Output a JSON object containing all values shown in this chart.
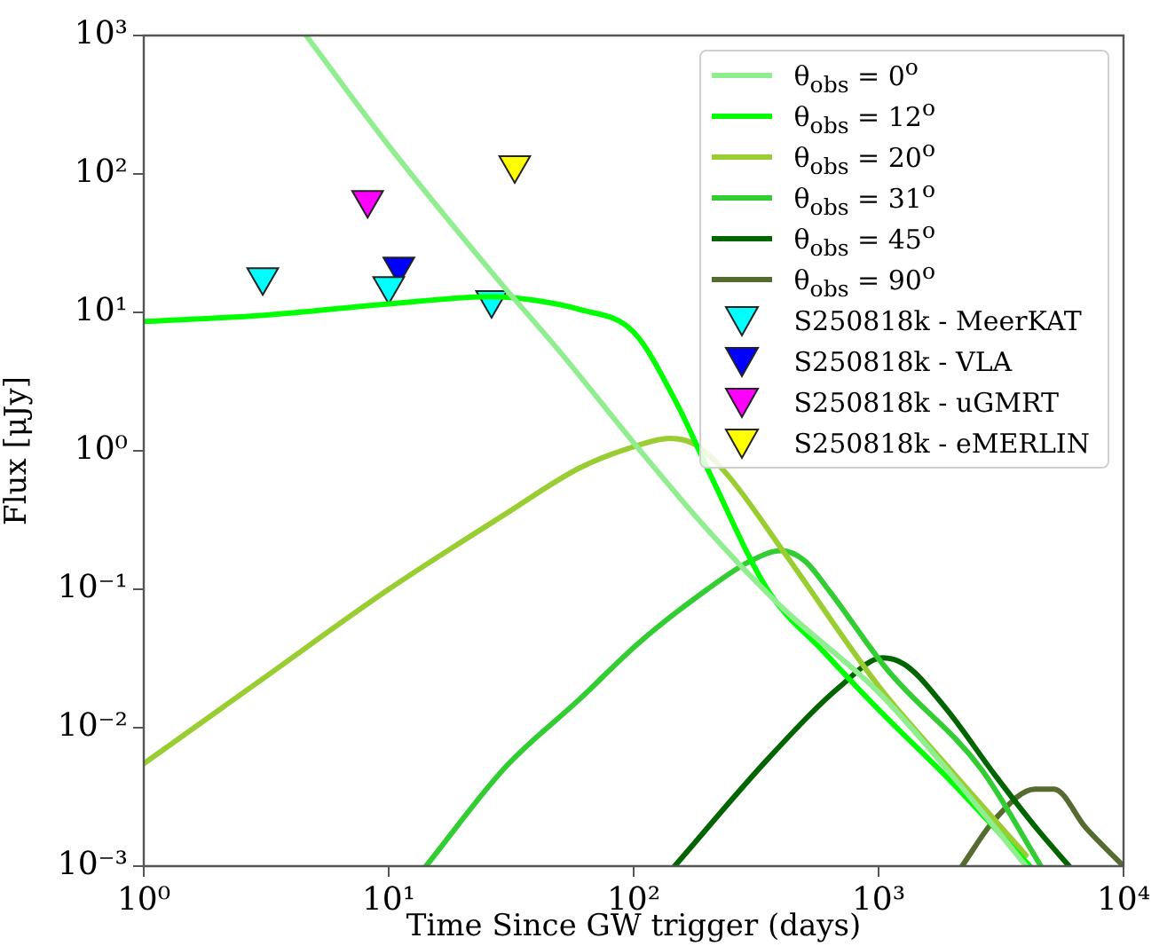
{
  "chart_data": {
    "type": "line",
    "xlabel": "Time Since GW trigger (days)",
    "ylabel": "Flux [μJy]",
    "log": "xy",
    "grid": false,
    "legend": "top right",
    "xlim": [
      1,
      10000
    ],
    "ylim": [
      0.001,
      1000
    ],
    "xticks": [
      {
        "value": 1,
        "label": "10⁰"
      },
      {
        "value": 10,
        "label": "10¹"
      },
      {
        "value": 100,
        "label": "10²"
      },
      {
        "value": 1000,
        "label": "10³"
      },
      {
        "value": 10000,
        "label": "10⁴"
      }
    ],
    "yticks": [
      {
        "value": 0.001,
        "label": "10⁻³"
      },
      {
        "value": 0.01,
        "label": "10⁻²"
      },
      {
        "value": 0.1,
        "label": "10⁻¹"
      },
      {
        "value": 1,
        "label": "10⁰"
      },
      {
        "value": 10,
        "label": "10¹"
      },
      {
        "value": 100,
        "label": "10²"
      },
      {
        "value": 1000,
        "label": "10³"
      }
    ],
    "series": [
      {
        "name": "θ$_{obs}$ = 0$^{o}$",
        "type": "line",
        "color": "#90ee90",
        "x": [
          4.6,
          10,
          27.7,
          50,
          105,
          200,
          400,
          1000,
          2000,
          4000
        ],
        "values": [
          1000,
          160,
          17.5,
          5.2,
          1.03,
          0.27,
          0.075,
          0.018,
          0.0045,
          0.001
        ]
      },
      {
        "name": "θ$_{obs}$ = 12$^{o}$",
        "type": "line",
        "color": "#00ff00",
        "x": [
          1,
          3,
          10,
          26,
          38.6,
          60,
          100,
          150,
          205,
          355,
          600,
          1000,
          2000,
          4150
        ],
        "values": [
          8.6,
          9.5,
          11.5,
          13,
          12.3,
          10.5,
          7.2,
          2.2,
          0.68,
          0.097,
          0.035,
          0.0135,
          0.004,
          0.001
        ]
      },
      {
        "name": "θ$_{obs}$ = 20$^{o}$",
        "type": "line",
        "color": "#9acd32",
        "x": [
          1,
          3,
          10,
          30,
          60,
          105,
          140,
          180,
          240,
          420,
          1000,
          2000,
          4000
        ],
        "values": [
          0.0055,
          0.022,
          0.1,
          0.35,
          0.75,
          1.1,
          1.23,
          1.1,
          0.68,
          0.175,
          0.02,
          0.0048,
          0.0012
        ]
      },
      {
        "name": "θ$_{obs}$ = 31$^{o}$",
        "type": "line",
        "color": "#32cd32",
        "x": [
          14.2,
          30,
          60,
          105,
          200,
          300,
          400,
          500,
          630,
          1090,
          2630,
          4600
        ],
        "values": [
          0.001,
          0.0052,
          0.016,
          0.041,
          0.1,
          0.16,
          0.19,
          0.16,
          0.097,
          0.026,
          0.005,
          0.001
        ]
      },
      {
        "name": "θ$_{obs}$ = 45$^{o}$",
        "type": "line",
        "color": "#006400",
        "x": [
          147,
          355,
          700,
          1040,
          1300,
          1900,
          3000,
          4500,
          6000
        ],
        "values": [
          0.001,
          0.006,
          0.02,
          0.032,
          0.028,
          0.0135,
          0.0045,
          0.0018,
          0.001
        ]
      },
      {
        "name": "θ$_{obs}$ = 90$^{o}$",
        "type": "line",
        "color": "#556b2f",
        "x": [
          2190,
          3000,
          4350,
          5200,
          7000,
          10000
        ],
        "values": [
          0.001,
          0.0022,
          0.0036,
          0.0036,
          0.0019,
          0.001
        ]
      },
      {
        "name": "S250818k - MeerKAT",
        "type": "scatter",
        "marker": "triangle",
        "color": "#00ffff",
        "x": [
          3.06,
          10,
          26.3
        ],
        "values": [
          18,
          15.5,
          12.3
        ]
      },
      {
        "name": "S250818k - VLA",
        "type": "scatter",
        "marker": "triangle",
        "color": "#0000ff",
        "x": [
          11
        ],
        "values": [
          21.5
        ]
      },
      {
        "name": "S250818k - uGMRT",
        "type": "scatter",
        "marker": "triangle",
        "color": "#ff00ff",
        "x": [
          8.2
        ],
        "values": [
          65
        ]
      },
      {
        "name": "S250818k - eMERLIN",
        "type": "scatter",
        "marker": "triangle",
        "color": "#ffff00",
        "x": [
          32.7
        ],
        "values": [
          116
        ]
      }
    ]
  }
}
